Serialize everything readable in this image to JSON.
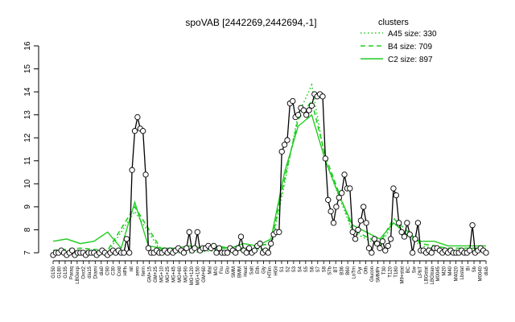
{
  "chart_data": {
    "type": "line",
    "title": "spoVAB [2442269,2442694,-1]",
    "xlabel": "",
    "ylabel": "",
    "ylim": [
      7,
      16
    ],
    "yticks": [
      7,
      8,
      9,
      10,
      11,
      12,
      13,
      14,
      15,
      16
    ],
    "x_tick_labels": [
      "G150",
      "G180",
      "G135",
      "Paraq",
      "LBGexp",
      "Oxct2",
      "dia15",
      "Diami",
      "dia0",
      "C90",
      "C30",
      "Cold",
      "HPh",
      "nit",
      "aero",
      "ferm",
      "GM+15",
      "GM+25",
      "MG+10",
      "MG+25",
      "MG+45",
      "MG+60",
      "MG+90",
      "MG+120",
      "MG+150",
      "GM+60",
      "Mal",
      "M/G",
      "Fru",
      "Glu",
      "SMM",
      "BMM",
      "Heat",
      "Salt",
      "Eth",
      "Gly",
      "HTim",
      "HGli",
      "S1",
      "S2",
      "S3",
      "S4",
      "S5",
      "S6",
      "S7",
      "S8",
      "S7b",
      "BT",
      "B36",
      "B60",
      "LoTm",
      "Pyr",
      "Oth",
      "Glucon",
      "SMMPr",
      "T30",
      "T120",
      "T180",
      "M9+stat",
      "BC",
      "Sw",
      "LPhT",
      "LBGstat",
      "LBGtran",
      "M0045",
      "M20",
      "M40",
      "M4020",
      "Lbstat",
      "Bi",
      "Sb",
      "M0040",
      "dia5"
    ],
    "legend": {
      "title": "clusters",
      "position": "top-right",
      "entries": [
        {
          "label": "A45 size: 330",
          "style": "dotted",
          "color": "#22cc22"
        },
        {
          "label": "B4 size: 709",
          "style": "dashed",
          "color": "#22cc22"
        },
        {
          "label": "C2 size: 897",
          "style": "solid",
          "color": "#22cc22"
        }
      ]
    },
    "colors": {
      "gene_line": "#000000",
      "cluster": "#22cc22",
      "point_fill": "#ffffff"
    },
    "series": [
      {
        "name": "spoVAB",
        "role": "gene",
        "x": [
          1,
          2,
          3,
          4,
          5,
          6,
          7,
          8,
          9,
          10,
          11,
          12,
          13,
          14,
          15,
          16,
          17,
          18,
          19,
          20,
          21,
          22,
          23,
          24,
          25,
          26,
          27,
          28,
          29,
          30,
          31,
          32,
          33,
          34,
          35,
          36,
          37,
          38,
          39,
          40,
          41,
          42,
          43,
          44,
          45,
          46,
          47,
          48,
          49,
          50,
          51,
          52,
          53,
          54,
          55,
          56,
          57,
          58,
          59,
          60,
          61,
          62,
          63,
          64,
          65,
          66,
          67,
          68,
          69,
          70,
          71,
          72,
          73,
          74,
          75,
          76,
          77,
          78,
          79,
          80,
          81,
          82,
          83,
          84,
          85,
          86,
          87,
          88,
          89,
          90,
          91,
          92,
          93,
          94,
          95,
          96,
          97,
          98,
          99,
          100,
          101,
          102,
          103,
          104,
          105,
          106,
          107,
          108,
          109,
          110,
          111,
          112,
          113,
          114,
          115,
          116,
          117,
          118,
          119,
          120,
          121,
          122,
          123,
          124,
          125,
          126,
          127,
          128,
          129,
          130,
          131,
          132,
          133,
          134,
          135,
          136,
          137,
          138,
          139,
          140,
          141,
          142,
          143,
          144,
          145,
          146,
          147,
          148,
          149,
          150,
          151,
          152,
          153,
          154,
          155,
          156,
          157,
          158,
          159,
          160
        ],
        "y": [
          6.9,
          7.0,
          7.0,
          7.1,
          7.0,
          6.9,
          7.0,
          7.1,
          6.9,
          7.0,
          7.0,
          7.0,
          6.9,
          7.0,
          7.0,
          7.0,
          6.9,
          7.0,
          7.1,
          7.0,
          6.9,
          7.0,
          7.1,
          7.0,
          7.1,
          7.0,
          7.0,
          7.6,
          7.0,
          10.6,
          12.3,
          12.9,
          12.4,
          12.3,
          10.4,
          7.2,
          7.0,
          7.0,
          7.1,
          7.0,
          7.0,
          7.1,
          7.0,
          7.1,
          7.0,
          7.1,
          7.2,
          7.1,
          7.0,
          7.2,
          7.9,
          7.1,
          7.2,
          7.9,
          7.1,
          7.2,
          7.2,
          7.3,
          7.2,
          7.3,
          7.0,
          7.2,
          7.0,
          7.0,
          7.0,
          7.2,
          7.1,
          7.0,
          7.2,
          7.7,
          7.1,
          7.0,
          7.2,
          7.0,
          7.1,
          7.3,
          7.4,
          7.0,
          7.1,
          7.0,
          7.4,
          7.8,
          7.9,
          7.9,
          11.4,
          11.7,
          11.9,
          13.5,
          13.6,
          12.9,
          13.0,
          13.3,
          13.2,
          13.0,
          13.2,
          13.4,
          13.9,
          13.8,
          13.9,
          13.8,
          11.1,
          9.3,
          8.8,
          8.3,
          9.0,
          9.4,
          9.6,
          10.4,
          9.8,
          9.8,
          7.9,
          7.6,
          8.0,
          8.4,
          9.0,
          8.3,
          7.2,
          7.0,
          7.6,
          7.4,
          7.2,
          7.5,
          7.1,
          7.3,
          7.6,
          9.8,
          9.5,
          8.3,
          7.9,
          7.7,
          8.3,
          7.8,
          7.0,
          7.6,
          8.3,
          7.1,
          7.1,
          7.0,
          7.1,
          7.0,
          7.2,
          7.2,
          7.1,
          7.0,
          7.1,
          7.0,
          7.1,
          7.0,
          7.0,
          7.0,
          7.1,
          7.0,
          7.0,
          7.1,
          8.2,
          7.0,
          7.1,
          7.2,
          7.1,
          7.0
        ]
      },
      {
        "name": "C2 size: 897",
        "role": "cluster",
        "style": "solid",
        "x": [
          1,
          6,
          11,
          16,
          21,
          26,
          31,
          36,
          41,
          46,
          51,
          56,
          61,
          66,
          71,
          76,
          81,
          86,
          91,
          96,
          101,
          106,
          111,
          116,
          121,
          126,
          131,
          136,
          141,
          146,
          151,
          156,
          160
        ],
        "y": [
          7.5,
          7.6,
          7.4,
          7.5,
          7.9,
          7.2,
          9.2,
          7.3,
          7.2,
          7.2,
          7.3,
          7.2,
          7.3,
          7.2,
          7.4,
          7.3,
          7.6,
          10.5,
          12.5,
          13.0,
          11.0,
          9.5,
          8.2,
          7.9,
          7.6,
          8.3,
          7.8,
          7.5,
          7.5,
          7.3,
          7.3,
          7.3,
          7.3
        ]
      },
      {
        "name": "B4 size: 709",
        "role": "cluster",
        "style": "dashed",
        "x": [
          1,
          11,
          21,
          31,
          41,
          51,
          61,
          71,
          81,
          86,
          91,
          96,
          101,
          111,
          121,
          126,
          136,
          146,
          156,
          160
        ],
        "y": [
          7.1,
          7.2,
          7.1,
          9.0,
          7.1,
          7.1,
          7.2,
          7.2,
          7.4,
          10.2,
          12.8,
          13.6,
          11.2,
          8.0,
          7.4,
          8.5,
          7.4,
          7.2,
          7.2,
          7.2
        ]
      },
      {
        "name": "A45 size: 330",
        "role": "cluster",
        "style": "dotted",
        "x": [
          1,
          11,
          21,
          31,
          41,
          51,
          61,
          71,
          81,
          86,
          91,
          96,
          101,
          111,
          121,
          126,
          136,
          146,
          156,
          160
        ],
        "y": [
          7.0,
          7.1,
          7.0,
          8.8,
          7.0,
          7.0,
          7.1,
          7.1,
          7.2,
          10.0,
          13.0,
          14.3,
          11.0,
          7.9,
          7.3,
          8.3,
          7.3,
          7.1,
          7.1,
          7.1
        ]
      }
    ]
  }
}
